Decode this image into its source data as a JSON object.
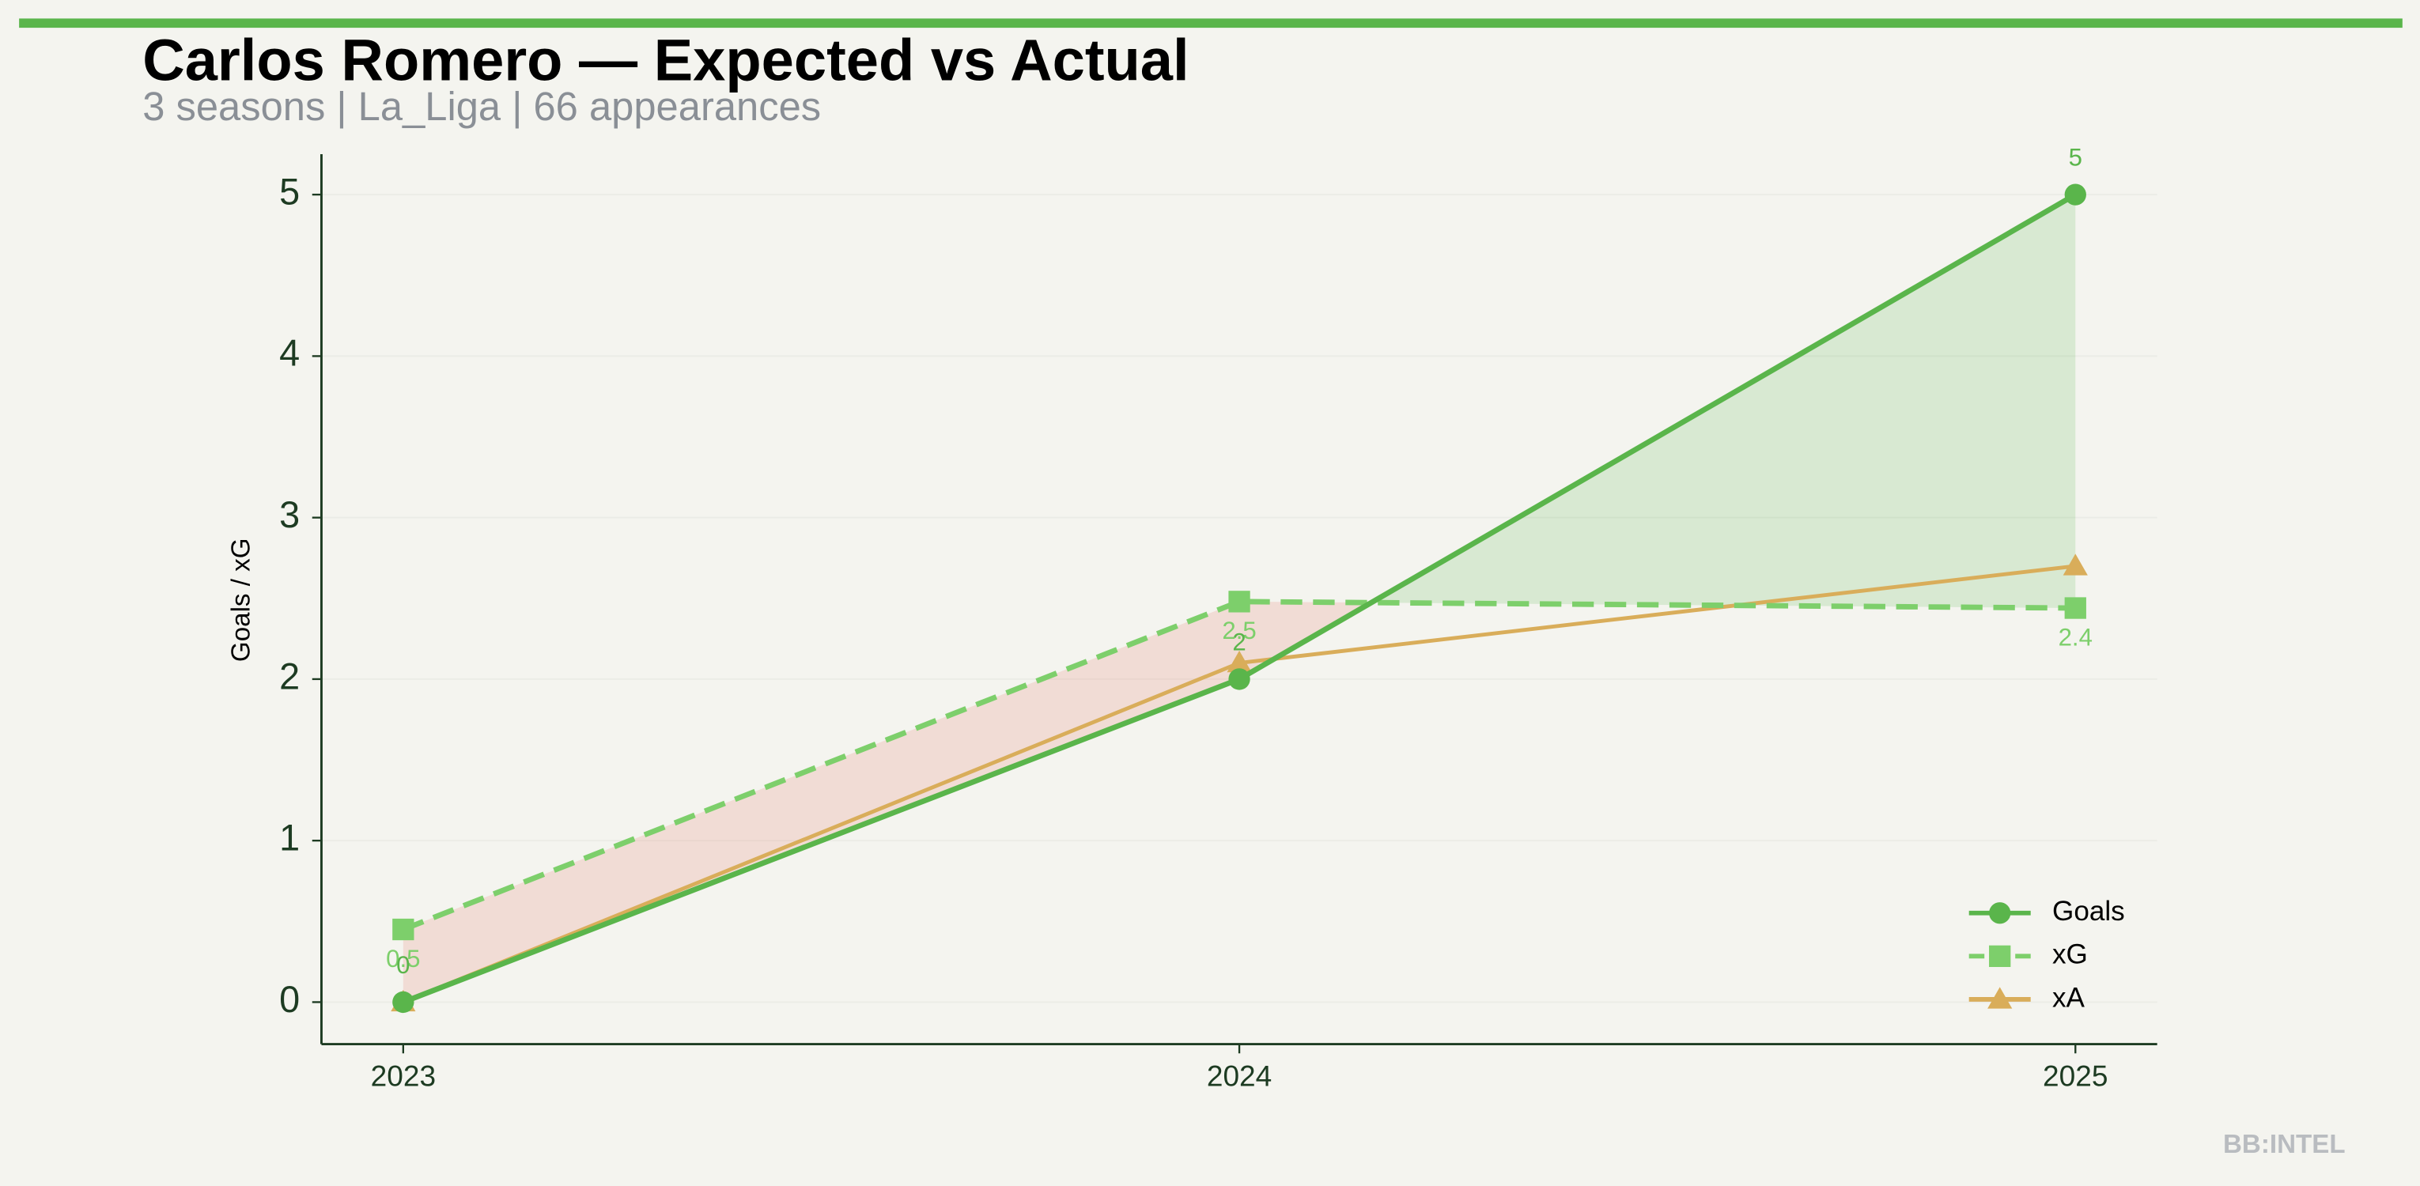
{
  "chart_data": {
    "type": "line",
    "title": "Carlos Romero — Expected vs Actual",
    "subtitle": "3 seasons | La_Liga | 66 appearances",
    "y_label": "Goals / xG",
    "watermark": "BB:INTEL",
    "categories": [
      "2023",
      "2024",
      "2025"
    ],
    "series": [
      {
        "name": "Goals",
        "color": "#5ab54b",
        "values": [
          0,
          2,
          5
        ],
        "marker": "circle",
        "dash": false
      },
      {
        "name": "xG",
        "color": "#7dcf6b",
        "values": [
          0.45,
          2.48,
          2.44
        ],
        "value_labels": [
          "0.5",
          "2.5",
          "2.4"
        ],
        "marker": "square",
        "dash": true
      },
      {
        "name": "xA",
        "color": "#d9ad5a",
        "values": [
          0,
          2.1,
          2.7
        ],
        "marker": "triangle",
        "dash": false
      }
    ],
    "ylim": [
      -0.26,
      5.25
    ],
    "yticks": [
      0,
      1,
      2,
      3,
      4,
      5
    ],
    "grid": true,
    "legend": "lower right",
    "over_color": "#5ab54b",
    "under_color": "#e8897a"
  }
}
